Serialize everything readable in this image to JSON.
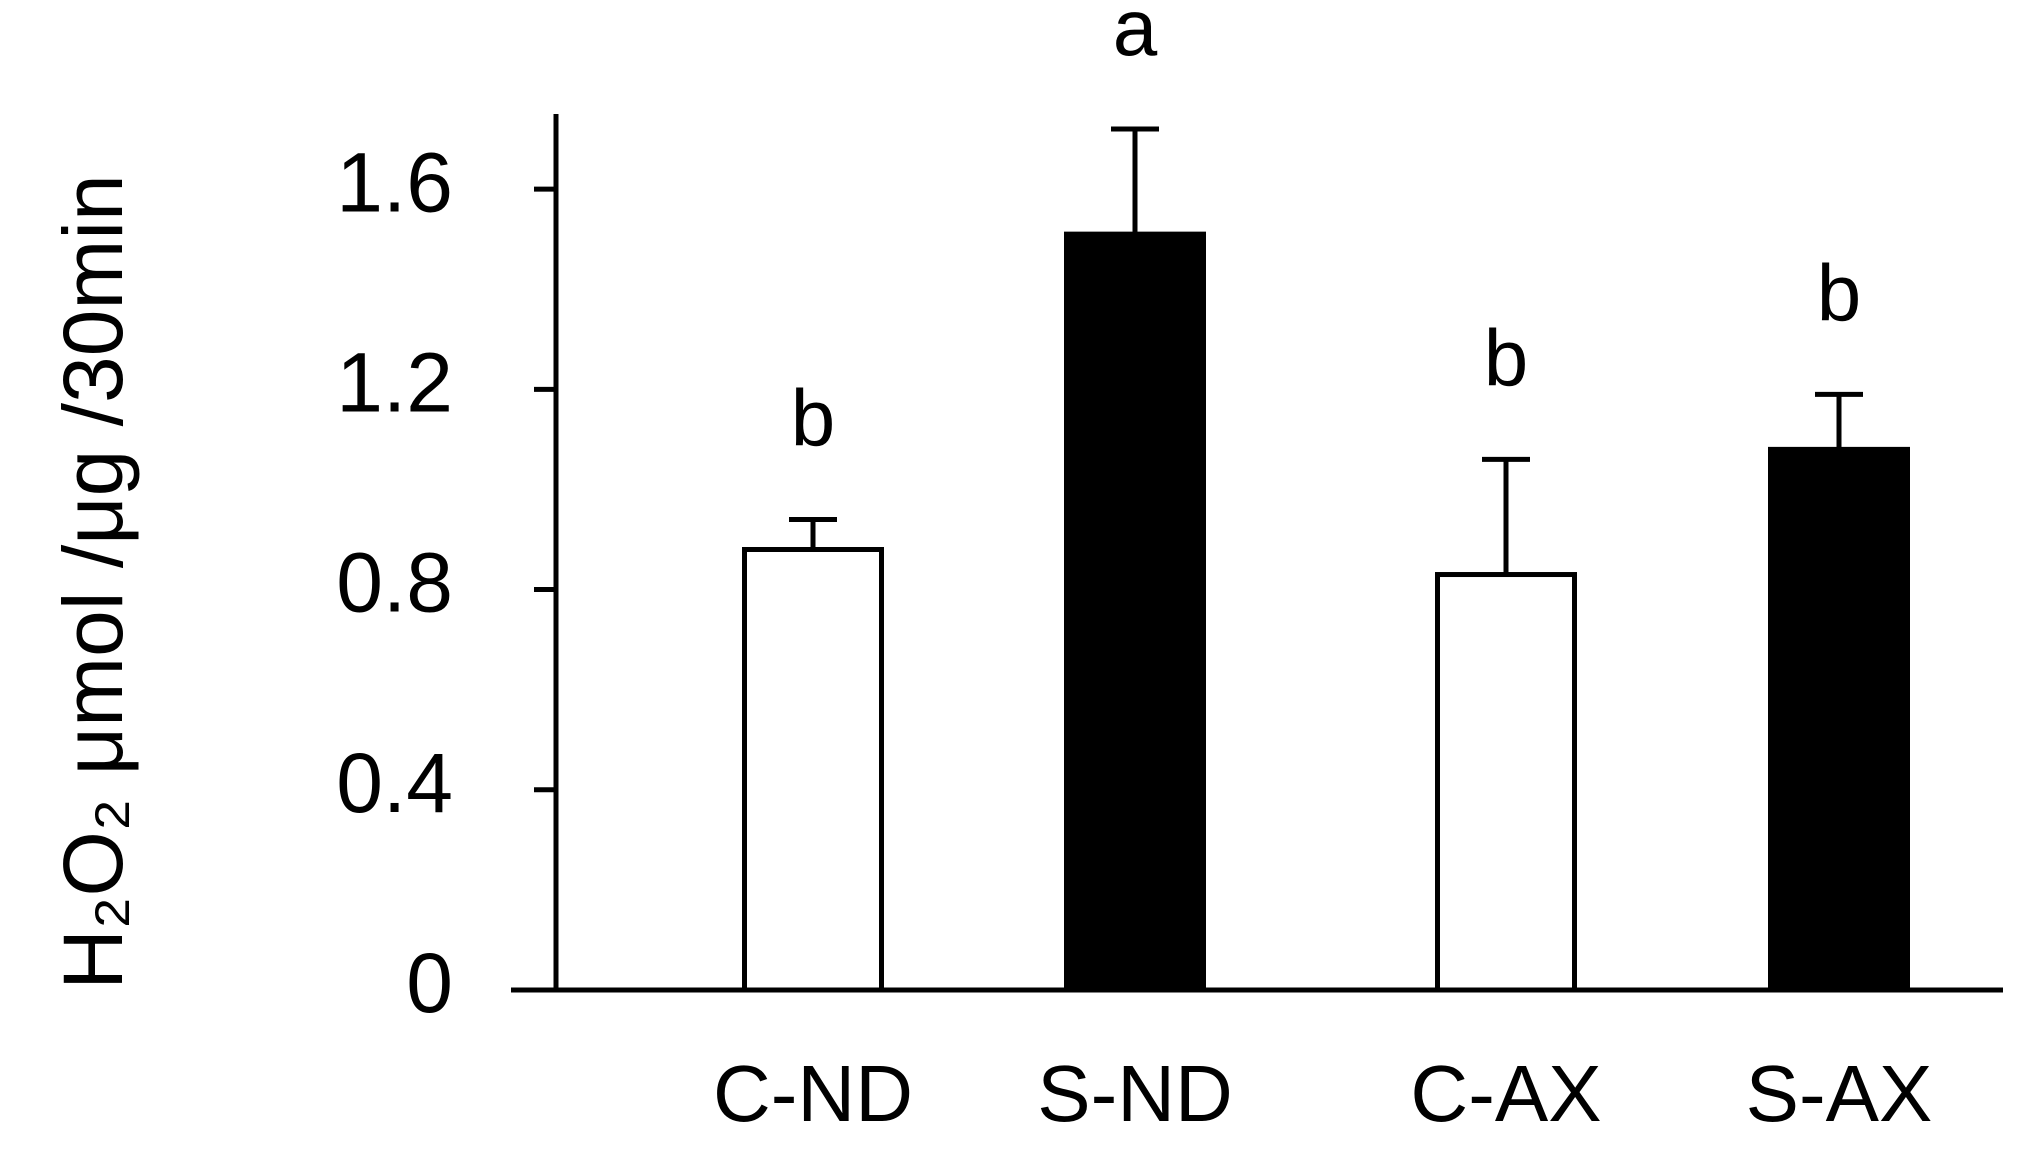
{
  "chart_data": {
    "type": "bar",
    "y_label": "H₂O₂ μmol /μg /30min",
    "categories": [
      "C-ND",
      "S-ND",
      "C-AX",
      "S-AX"
    ],
    "values": [
      0.88,
      1.51,
      0.83,
      1.08
    ],
    "errors": [
      0.06,
      0.21,
      0.23,
      0.11
    ],
    "colors": [
      "#ffffff",
      "#000000",
      "#ffffff",
      "#000000"
    ],
    "annotations": [
      "b",
      "a",
      "b",
      "b"
    ],
    "ylim": [
      0,
      1.75
    ],
    "yticks": [
      0,
      0.4,
      0.8,
      1.2,
      1.6
    ],
    "grid": false
  }
}
